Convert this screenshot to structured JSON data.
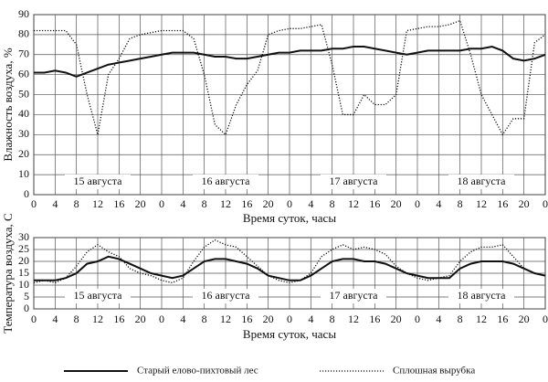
{
  "chart_data": [
    {
      "type": "line",
      "xlabel": "Время суток, часы",
      "ylabel": "Влажность воздуха, %",
      "x": [
        0,
        2,
        4,
        6,
        8,
        10,
        12,
        14,
        16,
        18,
        20,
        22,
        24,
        26,
        28,
        30,
        32,
        34,
        36,
        38,
        40,
        42,
        44,
        46,
        48,
        50,
        52,
        54,
        56,
        58,
        60,
        62,
        64,
        66,
        68,
        70,
        72,
        74,
        76,
        78,
        80,
        82,
        84,
        86,
        88,
        90,
        92,
        94,
        96
      ],
      "series": [
        {
          "color": "#111111",
          "linestyle": "solid",
          "values": [
            61,
            61,
            62,
            61,
            59,
            61,
            63,
            65,
            66,
            67,
            68,
            69,
            70,
            71,
            71,
            71,
            70,
            69,
            69,
            68,
            68,
            69,
            70,
            71,
            71,
            72,
            72,
            72,
            73,
            73,
            74,
            74,
            73,
            72,
            71,
            70,
            71,
            72,
            72,
            72,
            72,
            73,
            73,
            74,
            72,
            68,
            67,
            68,
            70
          ]
        },
        {
          "color": "#111111",
          "linestyle": "dotted",
          "values": [
            82,
            82,
            82,
            82,
            75,
            50,
            30,
            60,
            68,
            78,
            80,
            81,
            82,
            82,
            82,
            78,
            60,
            35,
            30,
            45,
            55,
            62,
            80,
            82,
            83,
            83,
            84,
            85,
            65,
            40,
            40,
            50,
            45,
            45,
            50,
            82,
            83,
            84,
            84,
            85,
            87,
            70,
            50,
            40,
            30,
            38,
            38,
            76,
            80
          ]
        }
      ],
      "day_labels": [
        "15 августа",
        "16 августа",
        "17 августа",
        "18 августа"
      ],
      "xlim": [
        0,
        96
      ],
      "xticks": [
        0,
        4,
        8,
        12,
        16,
        20,
        {
          "value": 24,
          "label": "0"
        },
        {
          "value": 28,
          "label": "4"
        },
        {
          "value": 32,
          "label": "8"
        },
        {
          "value": 36,
          "label": "12"
        },
        {
          "value": 40,
          "label": "16"
        },
        {
          "value": 44,
          "label": "20"
        },
        {
          "value": 48,
          "label": "0"
        },
        {
          "value": 52,
          "label": "4"
        },
        {
          "value": 56,
          "label": "8"
        },
        {
          "value": 60,
          "label": "12"
        },
        {
          "value": 64,
          "label": "16"
        },
        {
          "value": 68,
          "label": "20"
        },
        {
          "value": 72,
          "label": "0"
        },
        {
          "value": 76,
          "label": "4"
        },
        {
          "value": 80,
          "label": "8"
        },
        {
          "value": 84,
          "label": "12"
        },
        {
          "value": 88,
          "label": "16"
        },
        {
          "value": 92,
          "label": "20"
        },
        {
          "value": 96,
          "label": "0"
        }
      ],
      "ylim": [
        0,
        90
      ],
      "yticks": [
        0,
        10,
        20,
        30,
        40,
        50,
        60,
        70,
        80,
        90
      ],
      "grid": true
    },
    {
      "type": "line",
      "xlabel": "Время суток, часы",
      "ylabel": "Температура воздуха, С",
      "x": [
        0,
        2,
        4,
        6,
        8,
        10,
        12,
        14,
        16,
        18,
        20,
        22,
        24,
        26,
        28,
        30,
        32,
        34,
        36,
        38,
        40,
        42,
        44,
        46,
        48,
        50,
        52,
        54,
        56,
        58,
        60,
        62,
        64,
        66,
        68,
        70,
        72,
        74,
        76,
        78,
        80,
        82,
        84,
        86,
        88,
        90,
        92,
        94,
        96
      ],
      "series": [
        {
          "name": "Старый елово-пихтовый лес",
          "color": "#111111",
          "linestyle": "solid",
          "values": [
            12,
            12,
            12,
            13,
            15,
            19,
            20,
            22,
            21,
            19,
            17,
            15,
            14,
            13,
            14,
            17,
            20,
            21,
            21,
            20,
            19,
            17,
            14,
            13,
            12,
            12,
            14,
            17,
            20,
            21,
            21,
            20,
            20,
            19,
            17,
            15,
            14,
            13,
            13,
            13,
            17,
            19,
            20,
            20,
            20,
            19,
            17,
            15,
            14
          ]
        },
        {
          "name": "Сплошная вырубка",
          "color": "#111111",
          "linestyle": "dotted",
          "values": [
            11,
            12,
            11,
            13,
            18,
            24,
            27,
            24,
            22,
            17,
            15,
            14,
            12,
            11,
            13,
            20,
            26,
            29,
            27,
            26,
            22,
            18,
            14,
            12,
            11,
            12,
            15,
            22,
            25,
            27,
            25,
            26,
            25,
            23,
            18,
            15,
            13,
            12,
            13,
            14,
            20,
            24,
            26,
            26,
            27,
            22,
            17,
            15,
            14
          ]
        }
      ],
      "day_labels": [
        "15 августа",
        "16 августа",
        "17 августа",
        "18 августа"
      ],
      "xlim": [
        0,
        96
      ],
      "xticks": [
        0,
        4,
        8,
        12,
        16,
        20,
        {
          "value": 24,
          "label": "0"
        },
        {
          "value": 28,
          "label": "4"
        },
        {
          "value": 32,
          "label": "8"
        },
        {
          "value": 36,
          "label": "12"
        },
        {
          "value": 40,
          "label": "16"
        },
        {
          "value": 44,
          "label": "20"
        },
        {
          "value": 48,
          "label": "0"
        },
        {
          "value": 52,
          "label": "4"
        },
        {
          "value": 56,
          "label": "8"
        },
        {
          "value": 60,
          "label": "12"
        },
        {
          "value": 64,
          "label": "16"
        },
        {
          "value": 68,
          "label": "20"
        },
        {
          "value": 72,
          "label": "0"
        },
        {
          "value": 76,
          "label": "4"
        },
        {
          "value": 80,
          "label": "8"
        },
        {
          "value": 84,
          "label": "12"
        },
        {
          "value": 88,
          "label": "16"
        },
        {
          "value": 92,
          "label": "20"
        },
        {
          "value": 96,
          "label": "0"
        }
      ],
      "ylim": [
        0,
        30
      ],
      "yticks": [
        0,
        5,
        10,
        15,
        20,
        25,
        30
      ],
      "grid": true
    }
  ]
}
